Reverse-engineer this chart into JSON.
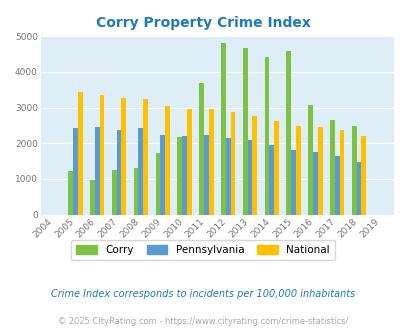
{
  "title": "Corry Property Crime Index",
  "years": [
    2004,
    2005,
    2006,
    2007,
    2008,
    2009,
    2010,
    2011,
    2012,
    2013,
    2014,
    2015,
    2016,
    2017,
    2018,
    2019
  ],
  "corry": [
    0,
    1220,
    960,
    1250,
    1310,
    1720,
    2170,
    3680,
    4820,
    4670,
    4410,
    4590,
    3080,
    2640,
    2480,
    0
  ],
  "pennsylvania": [
    0,
    2430,
    2460,
    2370,
    2440,
    2220,
    2200,
    2240,
    2160,
    2080,
    1960,
    1820,
    1760,
    1630,
    1480,
    0
  ],
  "national": [
    0,
    3450,
    3360,
    3260,
    3240,
    3040,
    2960,
    2950,
    2880,
    2750,
    2620,
    2490,
    2460,
    2380,
    2200,
    0
  ],
  "corry_color": "#7dc242",
  "penn_color": "#5b9bd5",
  "national_color": "#ffc000",
  "bg_color": "#ddeef6",
  "title_color": "#1e7ab8",
  "ylim": [
    0,
    5000
  ],
  "yticks": [
    0,
    1000,
    2000,
    3000,
    4000,
    5000
  ],
  "subtitle": "Crime Index corresponds to incidents per 100,000 inhabitants",
  "footer": "© 2025 CityRating.com - https://www.cityrating.com/crime-statistics/",
  "subtitle_color": "#1e7ab8",
  "footer_color": "#aaaaaa"
}
